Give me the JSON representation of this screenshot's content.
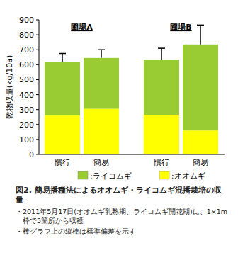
{
  "chart_data": {
    "type": "bar",
    "stacked": true,
    "title": "図2. 簡易播種法によるオオムギ・ライコムギ混播栽培の収量",
    "notes": [
      "・2011年5月17日(オオムギ乳熟期、ライコムギ開花期)に、1×1m枠で5箇所から収穫",
      "・棒グラフ上の縦棒は標準偏差を示す"
    ],
    "y_label": "乾物収量(kg/10a)",
    "group_labels": [
      "圃場A",
      "圃場B"
    ],
    "categories": [
      "慣行",
      "簡易",
      "慣行",
      "簡易"
    ],
    "series": [
      {
        "name": ":オオムギ",
        "color": "#ffff00",
        "values": [
          260,
          305,
          265,
          160
        ]
      },
      {
        "name": ":ライコムギ",
        "color": "#99cc33",
        "values": [
          360,
          340,
          370,
          575
        ],
        "errors": [
          55,
          55,
          75,
          130
        ]
      }
    ],
    "ylim": [
      0,
      900
    ],
    "yticks": [
      0,
      100,
      200,
      300,
      400,
      500,
      600,
      700,
      800,
      900
    ],
    "grid": false
  }
}
